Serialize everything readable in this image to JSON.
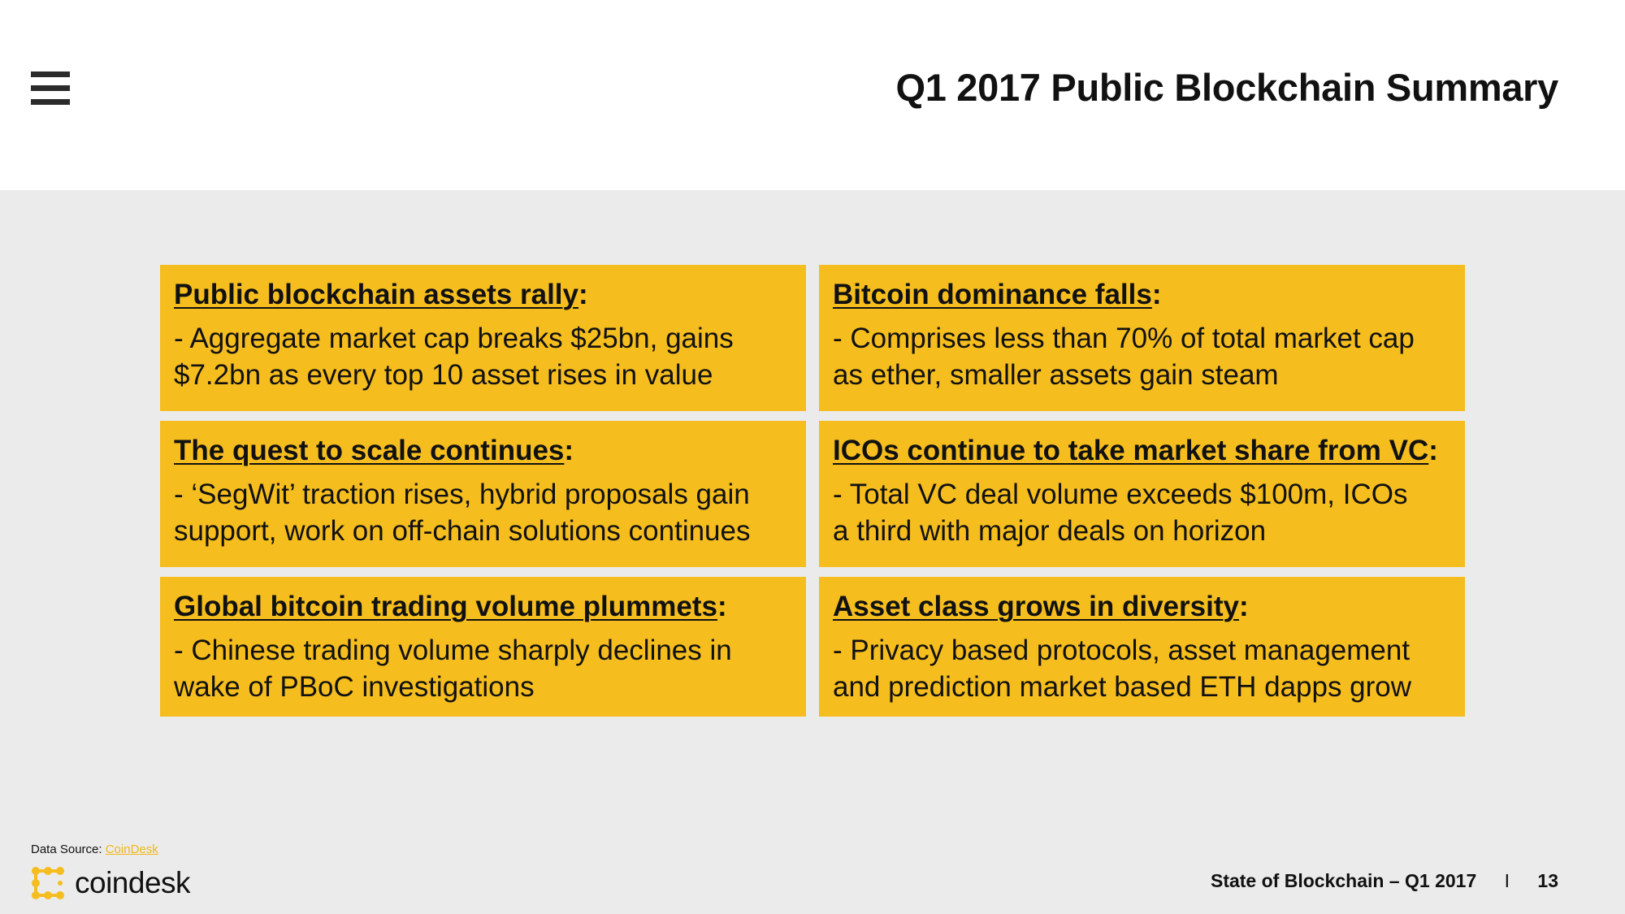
{
  "header": {
    "title": "Q1 2017 Public Blockchain Summary",
    "menu_icon": "hamburger-menu-icon"
  },
  "cards": [
    {
      "heading": "Public blockchain assets rally",
      "colon": ":",
      "line1": "- Aggregate market cap breaks $25bn, gains",
      "line2": "$7.2bn as every top 10 asset rises in value"
    },
    {
      "heading": "Bitcoin dominance falls",
      "colon": ":",
      "line1": "- Comprises less than 70% of total market cap",
      "line2": "as ether, smaller assets gain steam"
    },
    {
      "heading": "The quest to scale continues",
      "colon": ":",
      "line1": "- ‘SegWit’ traction rises, hybrid proposals gain",
      "line2": "support, work on off-chain solutions continues"
    },
    {
      "heading": "ICOs continue to take market share from VC",
      "colon": ":",
      "line1": "- Total VC deal volume exceeds $100m, ICOs",
      "line2": "a third with major deals on horizon"
    },
    {
      "heading": "Global bitcoin trading volume plummets",
      "colon": ":",
      "line1": "- Chinese trading volume sharply declines in",
      "line2": "wake of PBoC investigations"
    },
    {
      "heading": "Asset class grows in diversity",
      "colon": ":",
      "line1": "- Privacy based protocols, asset management",
      "line2": "and prediction market based ETH dapps grow"
    }
  ],
  "footer": {
    "source_label": "Data Source:",
    "source_link": "CoinDesk",
    "logo_text": "coindesk",
    "report_title": "State of Blockchain – Q1 2017",
    "separator": "I",
    "page_number": "13"
  },
  "colors": {
    "card_background": "#f5bd1e",
    "page_background": "#ebebeb",
    "link": "#f0b71a"
  }
}
